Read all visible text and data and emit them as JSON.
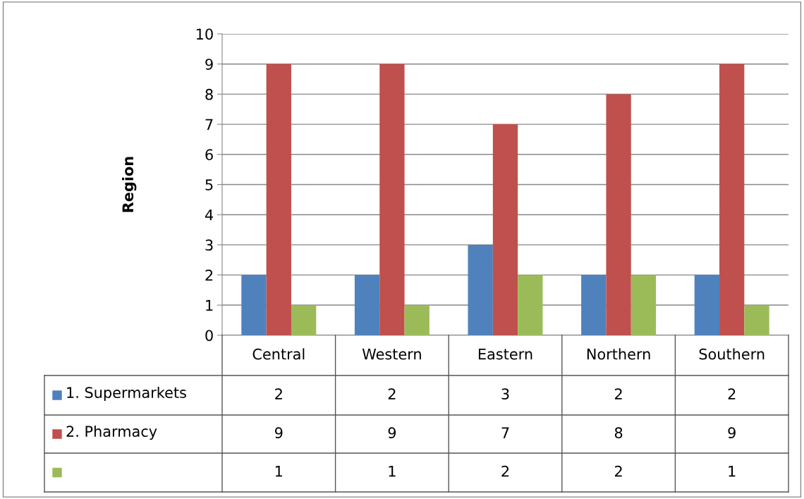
{
  "chart_data": {
    "type": "bar",
    "ylabel": "Region",
    "categories": [
      "Central",
      "Western",
      "Eastern",
      "Northern",
      "Southern"
    ],
    "series": [
      {
        "name": "1. Supermarkets",
        "color": "#4f81bd",
        "values": [
          2,
          2,
          3,
          2,
          2
        ]
      },
      {
        "name": "2. Pharmacy",
        "color": "#c0504d",
        "values": [
          9,
          9,
          7,
          8,
          9
        ]
      },
      {
        "color": "#9bbb59",
        "values": [
          1,
          1,
          2,
          2,
          1
        ]
      }
    ],
    "ylim": [
      0,
      10
    ],
    "yticks": [
      0,
      1,
      2,
      3,
      4,
      5,
      6,
      7,
      8,
      9,
      10
    ],
    "grid": "y",
    "data_labels": true,
    "legend": "left"
  }
}
